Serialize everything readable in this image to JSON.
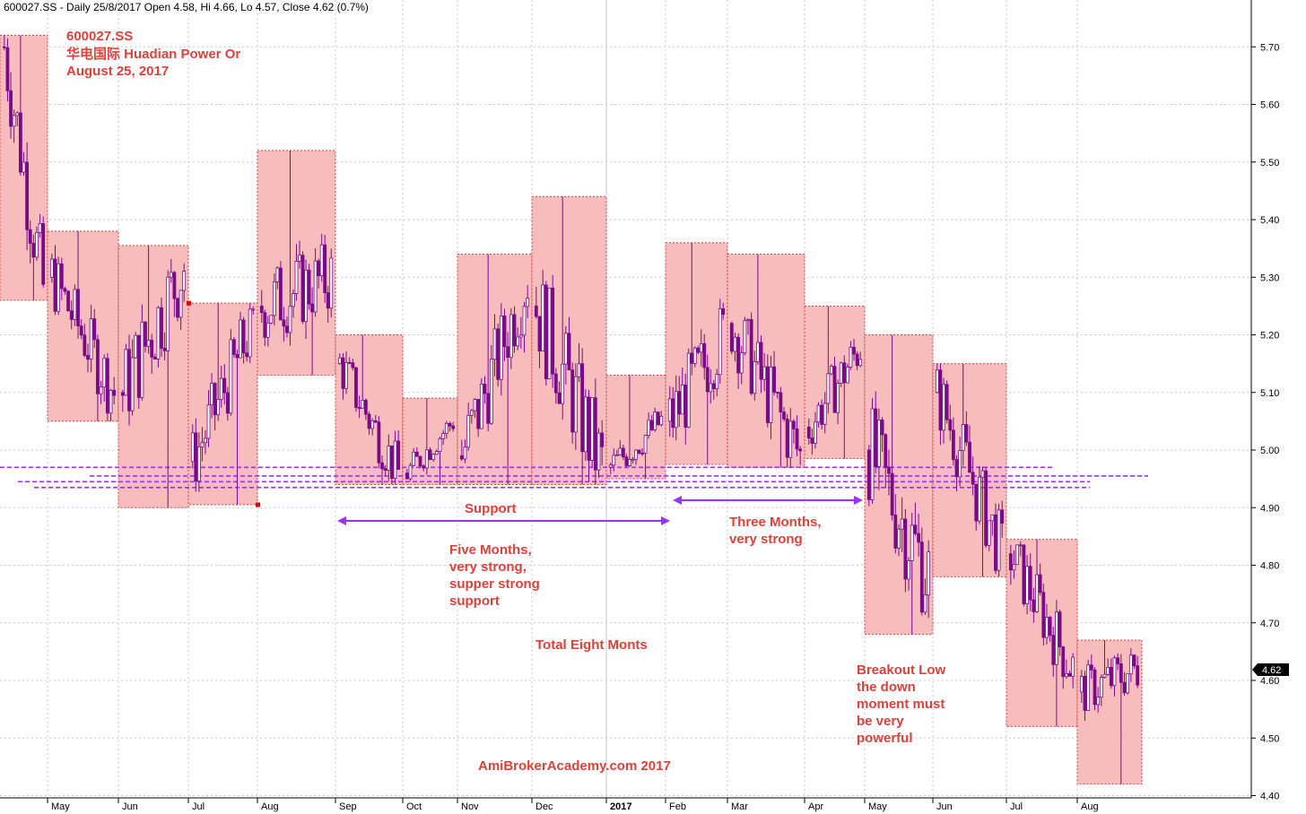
{
  "header": {
    "text": "600027.SS - Daily 25/8/2017 Open 4.58, Hi 4.66, Lo 4.57, Close 4.62 (0.7%)"
  },
  "title_block": {
    "line1": "600027.SS",
    "line2": "华电国际 Huadian Power Or",
    "line3": "August 25, 2017"
  },
  "annotations": {
    "support": "Support",
    "five_months": [
      "Five Months,",
      "very strong,",
      "supper strong",
      "support"
    ],
    "three_months": [
      "Three Months,",
      "very strong"
    ],
    "total": "Total Eight Monts",
    "breakout": [
      "Breakout Low",
      "the down",
      "moment must",
      "be very",
      "powerful"
    ],
    "watermark": "AmiBrokerAcademy.com  2017"
  },
  "last_price": "4.62",
  "colors": {
    "candle": "#7a0a8a",
    "box_fill": "#f7b9b9",
    "box_border": "#d64040",
    "support_line": "#9b30ff",
    "annotation_text": "#e0403a",
    "arrow": "#9b30ff",
    "grid": "#c8c8c8",
    "price_tag_bg": "#000000"
  },
  "chart_data": {
    "type": "candlestick",
    "ylim": [
      4.4,
      5.75
    ],
    "yticks": [
      "4.40",
      "4.50",
      "4.60",
      "4.70",
      "4.80",
      "4.90",
      "5.00",
      "5.10",
      "5.20",
      "5.30",
      "5.40",
      "5.50",
      "5.60",
      "5.70"
    ],
    "xticks": [
      {
        "label": "May"
      },
      {
        "label": "Jun"
      },
      {
        "label": "Jul"
      },
      {
        "label": "Aug"
      },
      {
        "label": "Sep"
      },
      {
        "label": "Oct"
      },
      {
        "label": "Nov"
      },
      {
        "label": "Dec"
      },
      {
        "label": "2017",
        "bold": true
      },
      {
        "label": "Feb"
      },
      {
        "label": "Mar"
      },
      {
        "label": "Apr"
      },
      {
        "label": "May"
      },
      {
        "label": "Jun"
      },
      {
        "label": "Jul"
      },
      {
        "label": "Aug"
      }
    ],
    "monthly_boxes": [
      {
        "month": "Apr 2016",
        "high": 5.72,
        "low": 5.26
      },
      {
        "month": "May 2016",
        "high": 5.38,
        "low": 5.05
      },
      {
        "month": "Jun 2016",
        "high": 5.355,
        "low": 4.9
      },
      {
        "month": "Jul 2016",
        "high": 5.255,
        "low": 4.905
      },
      {
        "month": "Aug 2016",
        "high": 5.52,
        "low": 5.13
      },
      {
        "month": "Sep 2016",
        "high": 5.2,
        "low": 4.94
      },
      {
        "month": "Oct 2016",
        "high": 5.09,
        "low": 4.94
      },
      {
        "month": "Nov 2016",
        "high": 5.34,
        "low": 4.94
      },
      {
        "month": "Dec 2016",
        "high": 5.44,
        "low": 4.94
      },
      {
        "month": "Jan 2017",
        "high": 5.13,
        "low": 4.95
      },
      {
        "month": "Feb 2017",
        "high": 5.36,
        "low": 4.975
      },
      {
        "month": "Mar 2017",
        "high": 5.34,
        "low": 4.97
      },
      {
        "month": "Apr 2017",
        "high": 5.25,
        "low": 4.985
      },
      {
        "month": "May 2017",
        "high": 5.2,
        "low": 4.68
      },
      {
        "month": "Jun 2017",
        "high": 5.15,
        "low": 4.78
      },
      {
        "month": "Jul 2017",
        "high": 4.845,
        "low": 4.52
      },
      {
        "month": "Aug 2017",
        "high": 4.67,
        "low": 4.42
      }
    ],
    "support_levels": [
      4.97,
      4.955,
      4.945,
      4.935
    ],
    "last_candle": {
      "date": "25/8/2017",
      "open": 4.58,
      "high": 4.66,
      "low": 4.57,
      "close": 4.62
    }
  }
}
